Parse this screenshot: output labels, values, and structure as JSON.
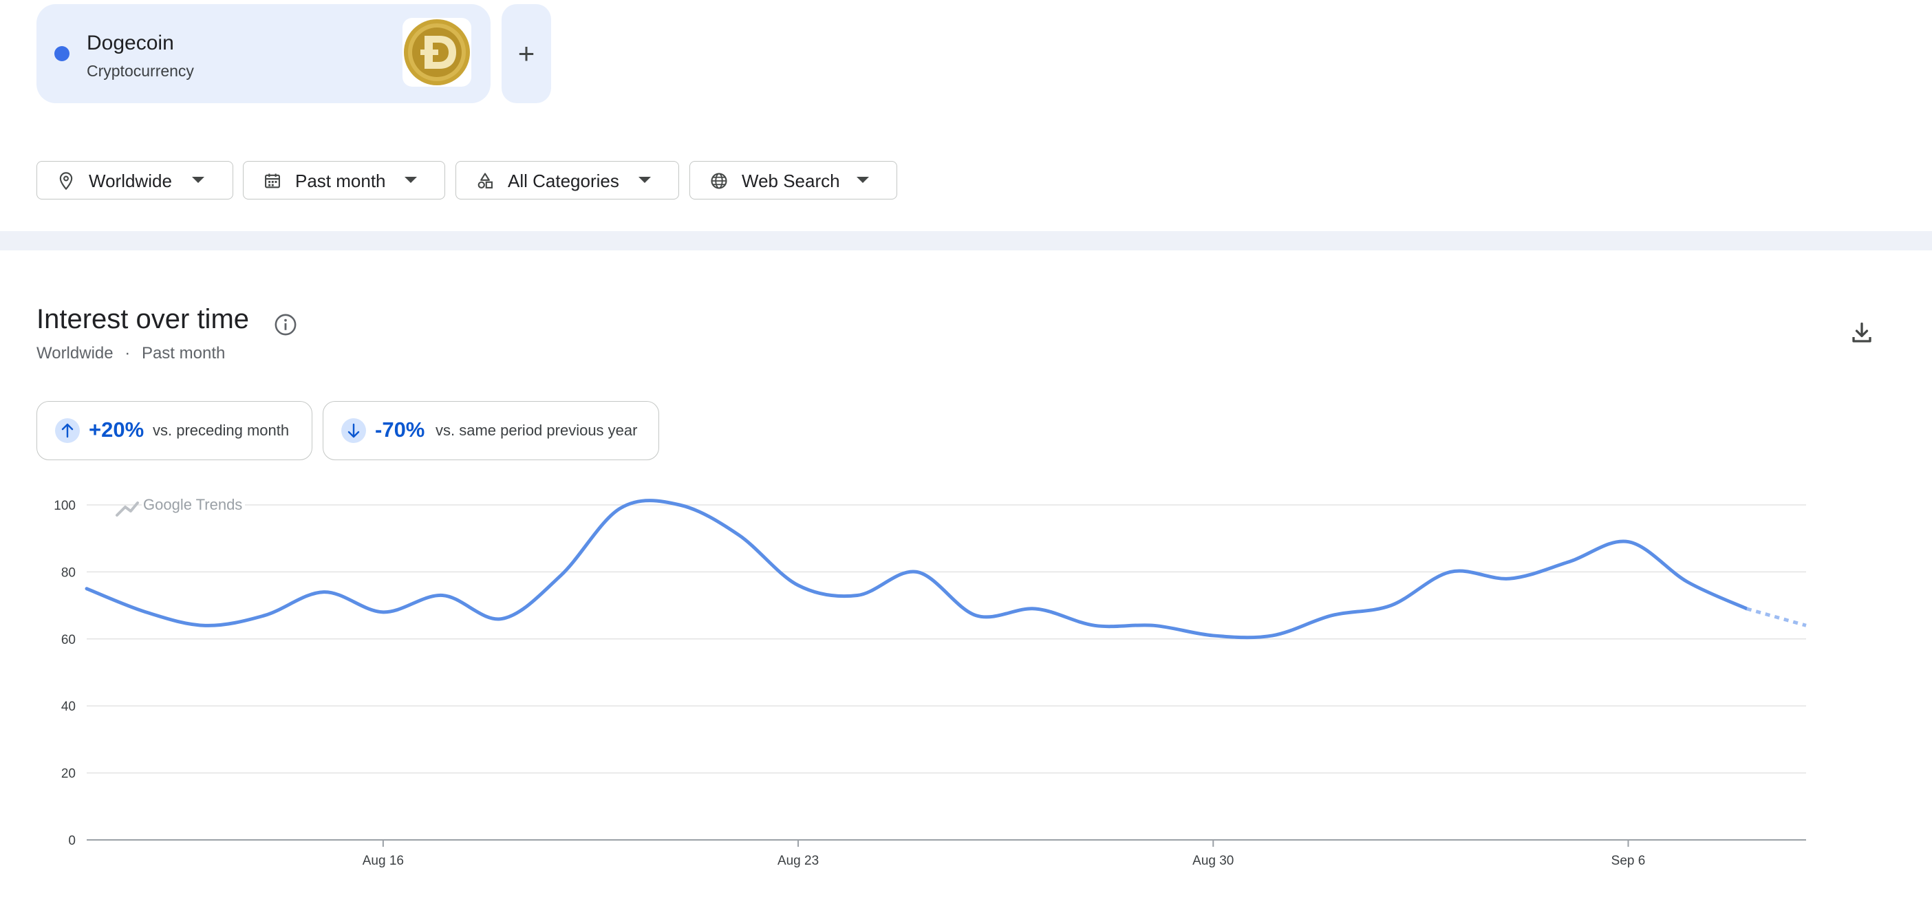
{
  "term": {
    "name": "Dogecoin",
    "type": "Cryptocurrency",
    "color": "#3a6fe8",
    "logo_icon": "dogecoin-logo",
    "add_label": "+"
  },
  "filters": {
    "location": {
      "label": "Worldwide",
      "icon": "location-pin-icon"
    },
    "time": {
      "label": "Past month",
      "icon": "calendar-icon"
    },
    "category": {
      "label": "All Categories",
      "icon": "categories-icon"
    },
    "property": {
      "label": "Web Search",
      "icon": "globe-icon"
    }
  },
  "section": {
    "title": "Interest over time",
    "subtitle_location": "Worldwide",
    "subtitle_separator": "·",
    "subtitle_time": "Past month"
  },
  "stats": [
    {
      "direction": "up",
      "value": "+20%",
      "label": "vs. preceding month"
    },
    {
      "direction": "down",
      "value": "-70%",
      "label": "vs. same period previous year"
    }
  ],
  "chart_data": {
    "type": "line",
    "watermark": "Google Trends",
    "ylim": [
      0,
      100
    ],
    "yticks": [
      0,
      20,
      40,
      60,
      80,
      100
    ],
    "grid": true,
    "x_labels": [
      {
        "index": 5,
        "label": "Aug 16"
      },
      {
        "index": 12,
        "label": "Aug 23"
      },
      {
        "index": 19,
        "label": "Aug 30"
      },
      {
        "index": 26,
        "label": "Sep 6"
      }
    ],
    "x_count": 30,
    "series": [
      {
        "color": "#5b8ee6",
        "values": [
          75,
          68,
          64,
          67,
          74,
          68,
          73,
          66,
          79,
          99,
          100,
          91,
          76,
          73,
          80,
          67,
          69,
          64,
          64,
          61,
          61,
          67,
          70,
          80,
          78,
          83,
          89,
          77,
          69,
          64
        ],
        "partial_from": 28
      }
    ]
  }
}
